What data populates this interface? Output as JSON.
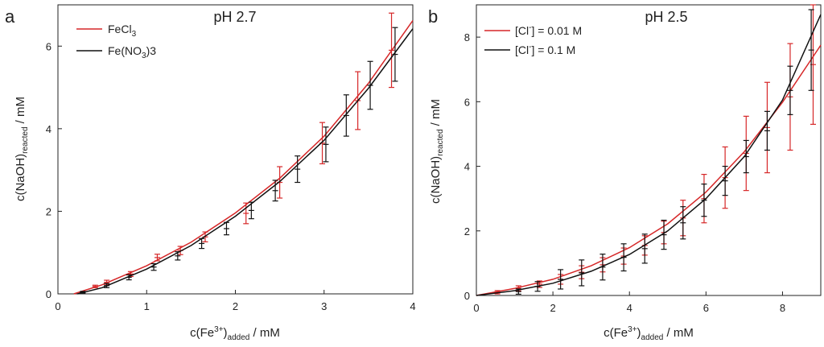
{
  "chart_data": [
    {
      "panel": "a",
      "type": "line",
      "title": "pH 2.7",
      "xlabel": {
        "main": "c(Fe",
        "sup": "3+",
        "mid": ")",
        "sub": "added",
        "end": " / mM"
      },
      "ylabel": {
        "main": "c(NaOH)",
        "sub": "reacted",
        "end": " / mM"
      },
      "xlim": [
        0,
        4
      ],
      "ylim": [
        0,
        7
      ],
      "xticks": [
        0,
        1,
        2,
        3,
        4
      ],
      "yticks": [
        0,
        2,
        4,
        6
      ],
      "legend_position": "top-left",
      "series": [
        {
          "name": "FeCl3",
          "legend": {
            "main": "FeCl",
            "sub": "3",
            "end": ""
          },
          "color": "#d62728",
          "fit": {
            "x": [
              0.18,
              0.5,
              1.0,
              1.5,
              2.0,
              2.5,
              3.0,
              3.5,
              4.0
            ],
            "y": [
              0.0,
              0.22,
              0.68,
              1.25,
              1.96,
              2.8,
              3.82,
              5.1,
              6.62
            ]
          },
          "points": [
            {
              "x": 0.42,
              "y": 0.18,
              "err": 0.03
            },
            {
              "x": 0.55,
              "y": 0.28,
              "err": 0.05
            },
            {
              "x": 0.82,
              "y": 0.48,
              "err": 0.06
            },
            {
              "x": 1.12,
              "y": 0.88,
              "err": 0.08
            },
            {
              "x": 1.38,
              "y": 1.05,
              "err": 0.1
            },
            {
              "x": 1.66,
              "y": 1.38,
              "err": 0.12
            },
            {
              "x": 2.12,
              "y": 1.95,
              "err": 0.25
            },
            {
              "x": 2.5,
              "y": 2.7,
              "err": 0.38
            },
            {
              "x": 2.98,
              "y": 3.65,
              "err": 0.5
            },
            {
              "x": 3.38,
              "y": 4.68,
              "err": 0.7
            },
            {
              "x": 3.76,
              "y": 5.9,
              "err": 0.9
            }
          ]
        },
        {
          "name": "Fe(NO3)3",
          "legend": {
            "main": "Fe(NO",
            "sub": "3",
            "end": ")3"
          },
          "color": "#111111",
          "fit": {
            "x": [
              0.22,
              0.5,
              1.0,
              1.5,
              2.0,
              2.5,
              3.0,
              3.5,
              4.0
            ],
            "y": [
              0.0,
              0.15,
              0.6,
              1.17,
              1.88,
              2.72,
              3.72,
              4.98,
              6.42
            ]
          },
          "points": [
            {
              "x": 0.28,
              "y": 0.04,
              "err": 0.02
            },
            {
              "x": 0.55,
              "y": 0.2,
              "err": 0.05
            },
            {
              "x": 0.8,
              "y": 0.4,
              "err": 0.06
            },
            {
              "x": 1.08,
              "y": 0.65,
              "err": 0.08
            },
            {
              "x": 1.35,
              "y": 0.92,
              "err": 0.1
            },
            {
              "x": 1.62,
              "y": 1.22,
              "err": 0.12
            },
            {
              "x": 1.9,
              "y": 1.58,
              "err": 0.15
            },
            {
              "x": 2.18,
              "y": 2.02,
              "err": 0.2
            },
            {
              "x": 2.45,
              "y": 2.5,
              "err": 0.25
            },
            {
              "x": 2.7,
              "y": 3.02,
              "err": 0.32
            },
            {
              "x": 3.02,
              "y": 3.62,
              "err": 0.42
            },
            {
              "x": 3.25,
              "y": 4.32,
              "err": 0.5
            },
            {
              "x": 3.52,
              "y": 5.05,
              "err": 0.58
            },
            {
              "x": 3.8,
              "y": 5.8,
              "err": 0.65
            }
          ]
        }
      ]
    },
    {
      "panel": "b",
      "type": "line",
      "title": "pH 2.5",
      "xlabel": {
        "main": "c(Fe",
        "sup": "3+",
        "mid": ")",
        "sub": "added",
        "end": " / mM"
      },
      "ylabel": {
        "main": "c(NaOH)",
        "sub": "reacted",
        "end": " / mM"
      },
      "xlim": [
        0,
        9
      ],
      "ylim": [
        0,
        9
      ],
      "xticks": [
        0,
        2,
        4,
        6,
        8
      ],
      "yticks": [
        0,
        2,
        4,
        6,
        8
      ],
      "legend_position": "top-left",
      "series": [
        {
          "name": "[Cl-] = 0.01 M",
          "legend": {
            "main": "[Cl",
            "sup": "-",
            "end": "] = 0.01 M"
          },
          "color": "#d62728",
          "fit": {
            "x": [
              0,
              1,
              2,
              3,
              4,
              5,
              6,
              7,
              8,
              9
            ],
            "y": [
              0.0,
              0.22,
              0.5,
              0.92,
              1.48,
              2.22,
              3.2,
              4.45,
              5.98,
              7.75
            ]
          },
          "points": [
            {
              "x": 0.55,
              "y": 0.1,
              "err": 0.05
            },
            {
              "x": 1.1,
              "y": 0.22,
              "err": 0.08
            },
            {
              "x": 1.65,
              "y": 0.35,
              "err": 0.1
            },
            {
              "x": 2.2,
              "y": 0.5,
              "err": 0.15
            },
            {
              "x": 2.75,
              "y": 0.72,
              "err": 0.2
            },
            {
              "x": 3.3,
              "y": 0.95,
              "err": 0.22
            },
            {
              "x": 3.85,
              "y": 1.22,
              "err": 0.25
            },
            {
              "x": 4.4,
              "y": 1.55,
              "err": 0.3
            },
            {
              "x": 4.9,
              "y": 1.95,
              "err": 0.35
            },
            {
              "x": 5.4,
              "y": 2.4,
              "err": 0.55
            },
            {
              "x": 5.95,
              "y": 3.0,
              "err": 0.75
            },
            {
              "x": 6.5,
              "y": 3.65,
              "err": 0.95
            },
            {
              "x": 7.05,
              "y": 4.4,
              "err": 1.15
            },
            {
              "x": 7.6,
              "y": 5.2,
              "err": 1.4
            },
            {
              "x": 8.2,
              "y": 6.15,
              "err": 1.65
            },
            {
              "x": 8.8,
              "y": 7.15,
              "err": 1.85
            }
          ]
        },
        {
          "name": "[Cl-] = 0.1 M",
          "legend": {
            "main": "[Cl",
            "sup": "-",
            "end": "] = 0.1 M"
          },
          "color": "#111111",
          "fit": {
            "x": [
              0,
              1,
              2,
              3,
              4,
              5,
              6,
              7,
              8,
              9
            ],
            "y": [
              0.0,
              0.15,
              0.38,
              0.75,
              1.27,
              2.0,
              3.0,
              4.3,
              6.05,
              8.7
            ]
          },
          "points": [
            {
              "x": 1.1,
              "y": 0.12,
              "err": 0.08
            },
            {
              "x": 1.6,
              "y": 0.28,
              "err": 0.15
            },
            {
              "x": 2.2,
              "y": 0.5,
              "err": 0.3
            },
            {
              "x": 2.75,
              "y": 0.7,
              "err": 0.4
            },
            {
              "x": 3.3,
              "y": 0.88,
              "err": 0.4
            },
            {
              "x": 3.85,
              "y": 1.18,
              "err": 0.42
            },
            {
              "x": 4.4,
              "y": 1.45,
              "err": 0.45
            },
            {
              "x": 4.9,
              "y": 1.88,
              "err": 0.45
            },
            {
              "x": 5.4,
              "y": 2.25,
              "err": 0.5
            },
            {
              "x": 5.95,
              "y": 2.95,
              "err": 0.5
            },
            {
              "x": 6.5,
              "y": 3.55,
              "err": 0.45
            },
            {
              "x": 7.05,
              "y": 4.3,
              "err": 0.5
            },
            {
              "x": 7.6,
              "y": 5.1,
              "err": 0.6
            },
            {
              "x": 8.2,
              "y": 6.35,
              "err": 0.75
            },
            {
              "x": 8.75,
              "y": 7.6,
              "err": 1.25
            }
          ]
        }
      ]
    }
  ]
}
